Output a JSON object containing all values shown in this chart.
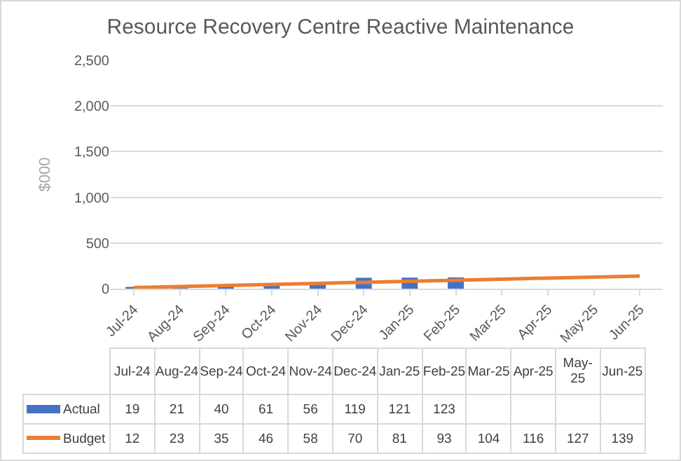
{
  "chart_data": {
    "type": "bar",
    "title": "Resource Recovery Centre Reactive Maintenance",
    "ylabel": "$000",
    "categories": [
      "Jul-24",
      "Aug-24",
      "Sep-24",
      "Oct-24",
      "Nov-24",
      "Dec-24",
      "Jan-25",
      "Feb-25",
      "Mar-25",
      "Apr-25",
      "May-25",
      "Jun-25"
    ],
    "series": [
      {
        "name": "Actual",
        "color": "#4472c4",
        "values": [
          19,
          21,
          40,
          61,
          56,
          119,
          121,
          123,
          null,
          null,
          null,
          null
        ]
      },
      {
        "name": "Budget",
        "type": "line",
        "color": "#ed7d31",
        "values": [
          12,
          23,
          35,
          46,
          58,
          70,
          81,
          93,
          104,
          116,
          127,
          139
        ]
      }
    ],
    "ylim": [
      0,
      2500
    ],
    "yticks": [
      0,
      {
        "value": 500,
        "label": "500"
      },
      {
        "value": 1000,
        "label": "1,000"
      },
      {
        "value": 1500,
        "label": "1,500"
      },
      {
        "value": 2000,
        "label": "2,000"
      },
      {
        "value": 2500,
        "label": "2,500"
      }
    ],
    "grid": "y",
    "legend": "bottom",
    "data_labels": true
  }
}
